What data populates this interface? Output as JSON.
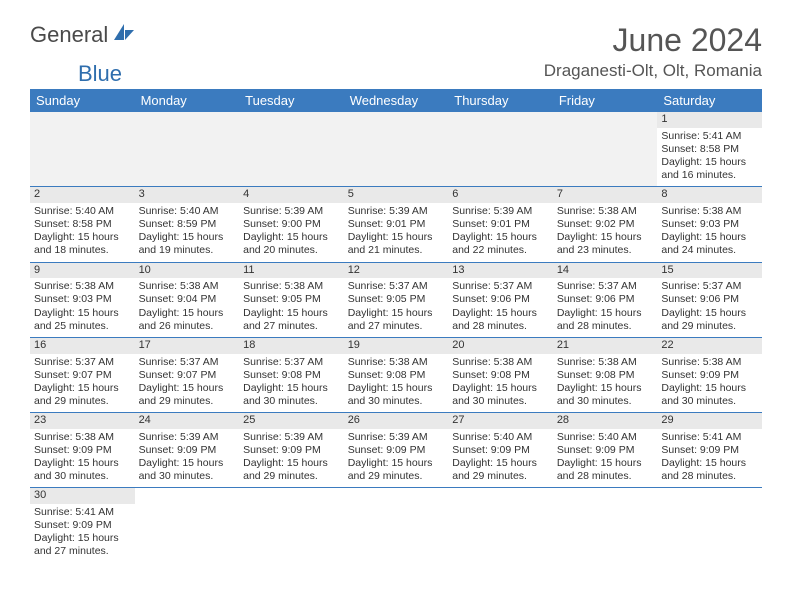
{
  "brand": {
    "general": "General",
    "blue": "Blue"
  },
  "title": "June 2024",
  "location": "Draganesti-Olt, Olt, Romania",
  "colors": {
    "header_bg": "#3b7bbf",
    "header_text": "#ffffff",
    "daynum_bg": "#e9e9e9",
    "border": "#3b7bbf",
    "blank_bg": "#f2f2f2",
    "text": "#333333"
  },
  "dayHeaders": [
    "Sunday",
    "Monday",
    "Tuesday",
    "Wednesday",
    "Thursday",
    "Friday",
    "Saturday"
  ],
  "startWeekday": 6,
  "daysInMonth": 30,
  "days": {
    "1": {
      "sunrise": "5:41 AM",
      "sunset": "8:58 PM",
      "daylight": "15 hours and 16 minutes."
    },
    "2": {
      "sunrise": "5:40 AM",
      "sunset": "8:58 PM",
      "daylight": "15 hours and 18 minutes."
    },
    "3": {
      "sunrise": "5:40 AM",
      "sunset": "8:59 PM",
      "daylight": "15 hours and 19 minutes."
    },
    "4": {
      "sunrise": "5:39 AM",
      "sunset": "9:00 PM",
      "daylight": "15 hours and 20 minutes."
    },
    "5": {
      "sunrise": "5:39 AM",
      "sunset": "9:01 PM",
      "daylight": "15 hours and 21 minutes."
    },
    "6": {
      "sunrise": "5:39 AM",
      "sunset": "9:01 PM",
      "daylight": "15 hours and 22 minutes."
    },
    "7": {
      "sunrise": "5:38 AM",
      "sunset": "9:02 PM",
      "daylight": "15 hours and 23 minutes."
    },
    "8": {
      "sunrise": "5:38 AM",
      "sunset": "9:03 PM",
      "daylight": "15 hours and 24 minutes."
    },
    "9": {
      "sunrise": "5:38 AM",
      "sunset": "9:03 PM",
      "daylight": "15 hours and 25 minutes."
    },
    "10": {
      "sunrise": "5:38 AM",
      "sunset": "9:04 PM",
      "daylight": "15 hours and 26 minutes."
    },
    "11": {
      "sunrise": "5:38 AM",
      "sunset": "9:05 PM",
      "daylight": "15 hours and 27 minutes."
    },
    "12": {
      "sunrise": "5:37 AM",
      "sunset": "9:05 PM",
      "daylight": "15 hours and 27 minutes."
    },
    "13": {
      "sunrise": "5:37 AM",
      "sunset": "9:06 PM",
      "daylight": "15 hours and 28 minutes."
    },
    "14": {
      "sunrise": "5:37 AM",
      "sunset": "9:06 PM",
      "daylight": "15 hours and 28 minutes."
    },
    "15": {
      "sunrise": "5:37 AM",
      "sunset": "9:06 PM",
      "daylight": "15 hours and 29 minutes."
    },
    "16": {
      "sunrise": "5:37 AM",
      "sunset": "9:07 PM",
      "daylight": "15 hours and 29 minutes."
    },
    "17": {
      "sunrise": "5:37 AM",
      "sunset": "9:07 PM",
      "daylight": "15 hours and 29 minutes."
    },
    "18": {
      "sunrise": "5:37 AM",
      "sunset": "9:08 PM",
      "daylight": "15 hours and 30 minutes."
    },
    "19": {
      "sunrise": "5:38 AM",
      "sunset": "9:08 PM",
      "daylight": "15 hours and 30 minutes."
    },
    "20": {
      "sunrise": "5:38 AM",
      "sunset": "9:08 PM",
      "daylight": "15 hours and 30 minutes."
    },
    "21": {
      "sunrise": "5:38 AM",
      "sunset": "9:08 PM",
      "daylight": "15 hours and 30 minutes."
    },
    "22": {
      "sunrise": "5:38 AM",
      "sunset": "9:09 PM",
      "daylight": "15 hours and 30 minutes."
    },
    "23": {
      "sunrise": "5:38 AM",
      "sunset": "9:09 PM",
      "daylight": "15 hours and 30 minutes."
    },
    "24": {
      "sunrise": "5:39 AM",
      "sunset": "9:09 PM",
      "daylight": "15 hours and 30 minutes."
    },
    "25": {
      "sunrise": "5:39 AM",
      "sunset": "9:09 PM",
      "daylight": "15 hours and 29 minutes."
    },
    "26": {
      "sunrise": "5:39 AM",
      "sunset": "9:09 PM",
      "daylight": "15 hours and 29 minutes."
    },
    "27": {
      "sunrise": "5:40 AM",
      "sunset": "9:09 PM",
      "daylight": "15 hours and 29 minutes."
    },
    "28": {
      "sunrise": "5:40 AM",
      "sunset": "9:09 PM",
      "daylight": "15 hours and 28 minutes."
    },
    "29": {
      "sunrise": "5:41 AM",
      "sunset": "9:09 PM",
      "daylight": "15 hours and 28 minutes."
    },
    "30": {
      "sunrise": "5:41 AM",
      "sunset": "9:09 PM",
      "daylight": "15 hours and 27 minutes."
    }
  },
  "labels": {
    "sunrise": "Sunrise: ",
    "sunset": "Sunset: ",
    "daylight": "Daylight: "
  }
}
